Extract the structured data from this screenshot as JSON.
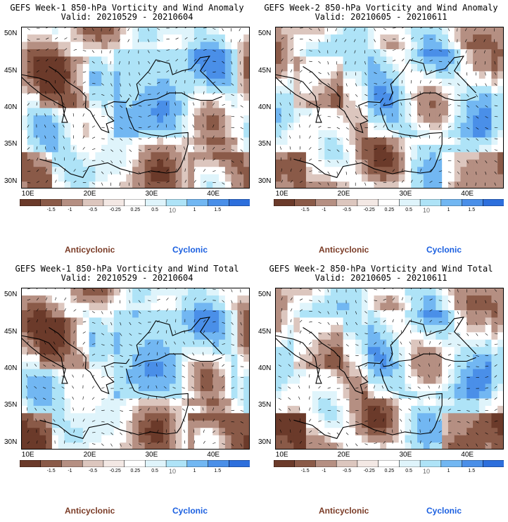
{
  "colors": {
    "anticyclonic_text": "#7a3b26",
    "cyclonic_text": "#1a5fe0",
    "bins": [
      "#6b3a2a",
      "#8a5a48",
      "#b58f82",
      "#dcc6be",
      "#f3e8e4",
      "#ffffff",
      "#dff4fb",
      "#aee3f7",
      "#72b7f2",
      "#4a8fe8",
      "#2d6fdc"
    ]
  },
  "panels": [
    {
      "title": "GEFS Week-1 850-hPa Vorticity and Wind Anomaly",
      "valid": "Valid: 20210529 - 20210604",
      "legend_left": "Anticyclonic",
      "legend_right": "Cyclonic"
    },
    {
      "title": "GEFS Week-2 850-hPa Vorticity and Wind Anomaly",
      "valid": "Valid: 20210605 - 20210611",
      "legend_left": "Anticyclonic",
      "legend_right": "Cyclonic"
    },
    {
      "title": "GEFS Week-1 850-hPa Vorticity and Wind Total",
      "valid": "Valid: 20210529 - 20210604",
      "legend_left": "Anticyclonic",
      "legend_right": "Cyclonic"
    },
    {
      "title": "GEFS Week-2 850-hPa Vorticity and Wind Total",
      "valid": "Valid: 20210605 - 20210611",
      "legend_left": "Anticyclonic",
      "legend_right": "Cyclonic"
    }
  ],
  "chart_data": {
    "type": "heatmap",
    "lat_ticks": [
      "50N",
      "45N",
      "40N",
      "35N",
      "30N"
    ],
    "lon_ticks": [
      "10E",
      "20E",
      "30E",
      "40E"
    ],
    "lat_range": [
      29,
      51
    ],
    "lon_range": [
      9,
      46
    ],
    "colorbar_ticks": [
      "-1.5",
      "-1",
      "-0.5",
      "-0.25",
      "0.25",
      "0.5",
      "1",
      "1.5"
    ],
    "colorbar_scale": "10"
  }
}
